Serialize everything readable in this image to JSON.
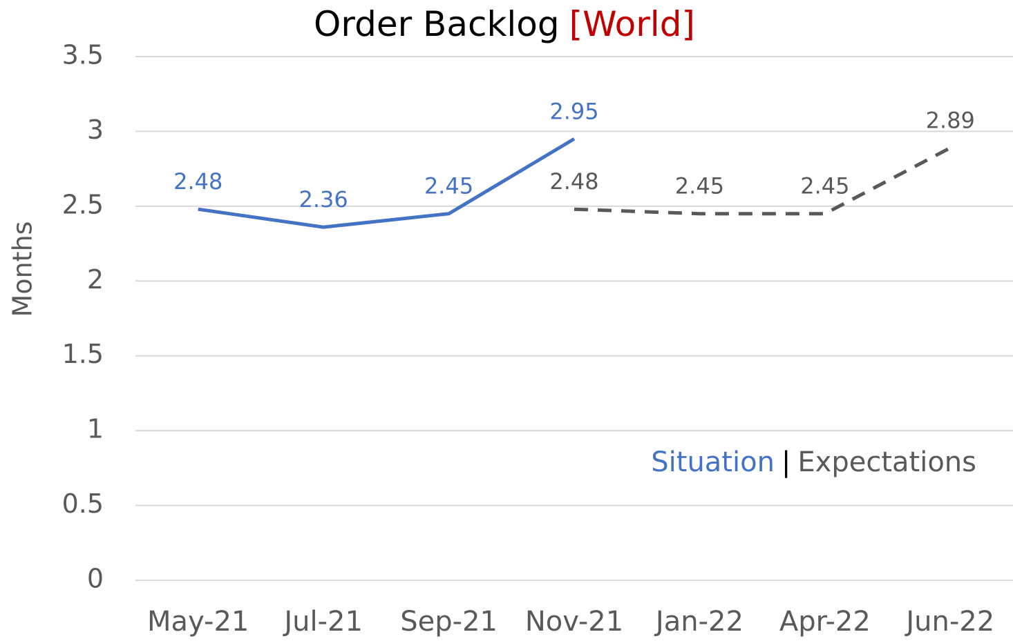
{
  "chart_data": {
    "type": "line",
    "title": "Order Backlog",
    "title_region": "[World]",
    "y_label": "Months",
    "categories": [
      "May-21",
      "Jul-21",
      "Sep-21",
      "Nov-21",
      "Jan-22",
      "Apr-22",
      "Jun-22"
    ],
    "series": [
      {
        "name": "Situation",
        "color": "#4472c4",
        "dashed": false,
        "values": [
          2.48,
          2.36,
          2.45,
          2.95,
          null,
          null,
          null
        ]
      },
      {
        "name": "Expectations",
        "color": "#595959",
        "dashed": true,
        "values": [
          null,
          null,
          null,
          2.48,
          2.45,
          2.45,
          2.89
        ]
      }
    ],
    "legend_separator": "|",
    "ylim": [
      0,
      3.5
    ],
    "yticks": [
      0,
      0.5,
      1,
      1.5,
      2,
      2.5,
      3,
      3.5
    ],
    "grid": true
  }
}
